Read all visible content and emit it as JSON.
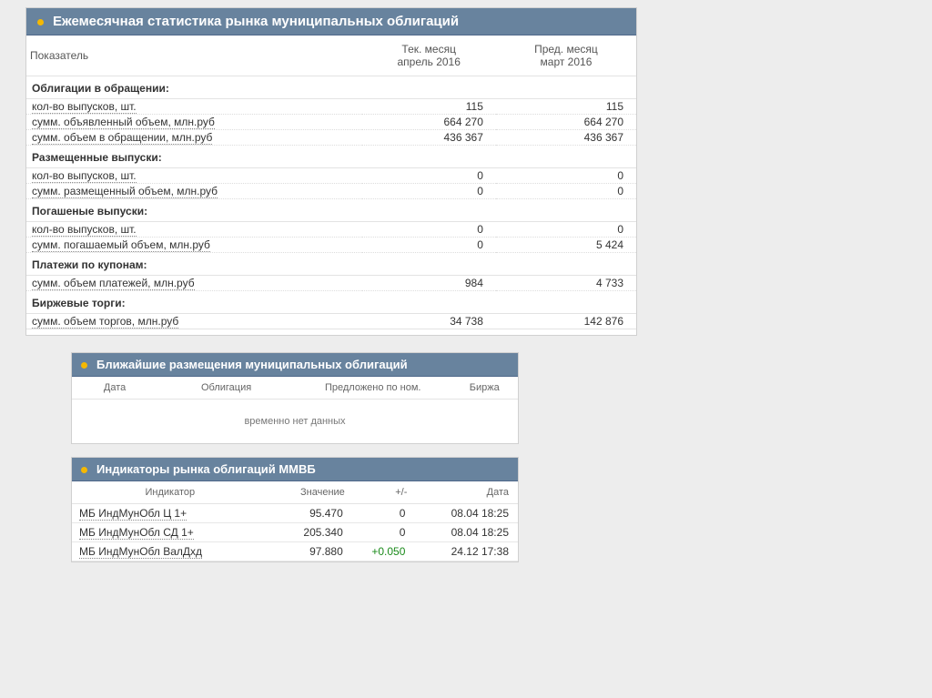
{
  "stats": {
    "title": "Ежемесячная статистика рынка муниципальных облигаций",
    "col_indicator": "Показатель",
    "col_cur_top": "Тек. месяц",
    "col_cur_bot": "апрель 2016",
    "col_prev_top": "Пред. месяц",
    "col_prev_bot": "март 2016",
    "sections": [
      {
        "title": "Облигации в обращении:",
        "rows": [
          {
            "label": "кол-во выпусков, шт.",
            "cur": "115",
            "prev": "115"
          },
          {
            "label": "сумм. объявленный объем, млн.руб",
            "cur": "664 270",
            "prev": "664 270"
          },
          {
            "label": "сумм. объем в обращении, млн.руб",
            "cur": "436 367",
            "prev": "436 367"
          }
        ]
      },
      {
        "title": "Размещенные выпуски:",
        "rows": [
          {
            "label": "кол-во выпусков, шт.",
            "cur": "0",
            "prev": "0"
          },
          {
            "label": "сумм. размещенный объем, млн.руб",
            "cur": "0",
            "prev": "0"
          }
        ]
      },
      {
        "title": "Погашеные выпуски:",
        "rows": [
          {
            "label": "кол-во выпусков, шт.",
            "cur": "0",
            "prev": "0"
          },
          {
            "label": "сумм. погашаемый объем, млн.руб",
            "cur": "0",
            "prev": "5 424"
          }
        ]
      },
      {
        "title": "Платежи по купонам:",
        "rows": [
          {
            "label": "сумм. объем платежей, млн.руб",
            "cur": "984",
            "prev": "4 733"
          }
        ]
      },
      {
        "title": "Биржевые торги:",
        "rows": [
          {
            "label": "сумм. объем торгов, млн.руб",
            "cur": "34 738",
            "prev": "142 876"
          }
        ]
      }
    ]
  },
  "placements": {
    "title": "Ближайшие размещения муниципальных облигаций",
    "col_date": "Дата",
    "col_bond": "Облигация",
    "col_offer": "Предложено по ном.",
    "col_exch": "Биржа",
    "nodata": "временно нет данных"
  },
  "indicators": {
    "title": "Индикаторы рынка облигаций ММВБ",
    "col_indicator": "Индикатор",
    "col_value": "Значение",
    "col_delta": "+/-",
    "col_date": "Дата",
    "rows": [
      {
        "label": "МБ ИндМунОбл Ц 1+",
        "value": "95.470",
        "delta": "0",
        "delta_pos": false,
        "date": "08.04 18:25"
      },
      {
        "label": "МБ ИндМунОбл СД 1+",
        "value": "205.340",
        "delta": "0",
        "delta_pos": false,
        "date": "08.04 18:25"
      },
      {
        "label": "МБ ИндМунОбл ВалДхд",
        "value": "97.880",
        "delta": "+0.050",
        "delta_pos": true,
        "date": "24.12 17:38"
      }
    ]
  }
}
